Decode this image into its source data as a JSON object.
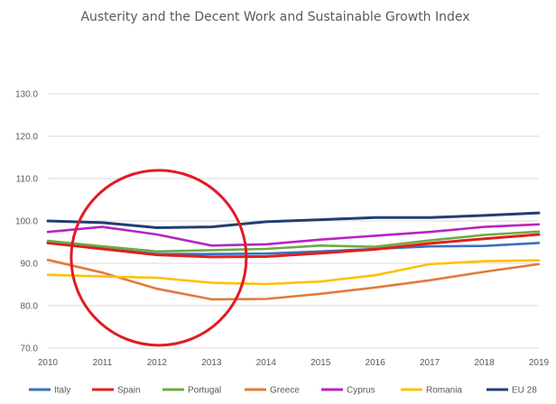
{
  "chart_data": {
    "type": "line",
    "title": "Austerity and the Decent Work and Sustainable Growth Index",
    "xlabel": "",
    "ylabel": "",
    "x": [
      "2010",
      "2011",
      "2012",
      "2013",
      "2014",
      "2015",
      "2016",
      "2017",
      "2018",
      "2019"
    ],
    "yticks": [
      "70.0",
      "80.0",
      "90.0",
      "100.0",
      "110.0",
      "120.0",
      "130.0"
    ],
    "ylim": [
      70,
      130
    ],
    "grid": true,
    "legend_position": "bottom",
    "series": [
      {
        "name": "Italy",
        "color": "#3a6fbd",
        "values": [
          94.8,
          93.5,
          92.2,
          92.2,
          92.3,
          92.8,
          93.4,
          94.0,
          94.1,
          94.8
        ]
      },
      {
        "name": "Spain",
        "color": "#e0201b",
        "values": [
          94.8,
          93.4,
          92.0,
          91.5,
          91.6,
          92.4,
          93.3,
          94.7,
          95.8,
          96.8
        ]
      },
      {
        "name": "Portugal",
        "color": "#6cab44",
        "values": [
          95.3,
          94.0,
          92.8,
          93.1,
          93.4,
          94.2,
          93.9,
          95.4,
          96.7,
          97.5
        ]
      },
      {
        "name": "Greece",
        "color": "#e07b39",
        "values": [
          90.8,
          87.8,
          84.0,
          81.5,
          81.6,
          82.8,
          84.3,
          86.0,
          88.0,
          89.8
        ]
      },
      {
        "name": "Cyprus",
        "color": "#b624c4",
        "values": [
          97.4,
          98.6,
          96.8,
          94.2,
          94.5,
          95.6,
          96.5,
          97.4,
          98.6,
          99.2
        ]
      },
      {
        "name": "Romania",
        "color": "#ffc000",
        "values": [
          87.3,
          86.9,
          86.6,
          85.4,
          85.1,
          85.7,
          87.2,
          89.8,
          90.5,
          90.7
        ]
      },
      {
        "name": "EU 28",
        "color": "#213d73",
        "values": [
          100.0,
          99.6,
          98.4,
          98.6,
          99.8,
          100.3,
          100.8,
          100.8,
          101.3,
          101.9
        ]
      }
    ],
    "annotation": {
      "shape": "circle",
      "color": "#e11b22",
      "center_x": "2012",
      "center_y": 91.3
    }
  }
}
